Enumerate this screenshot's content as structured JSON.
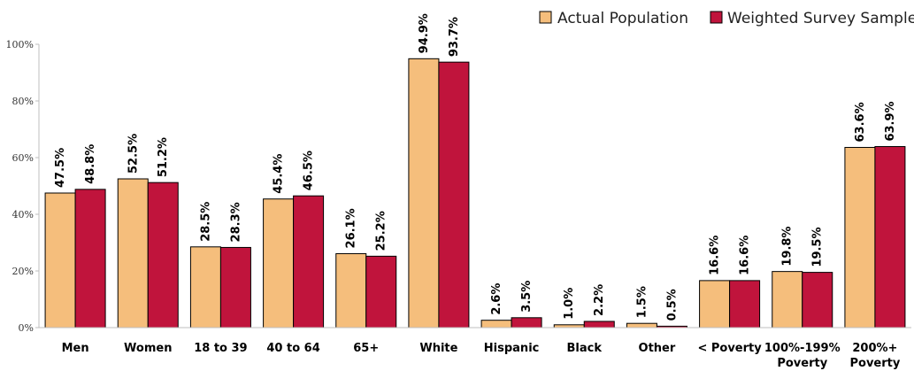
{
  "chart_data": {
    "type": "bar",
    "categories": [
      "Men",
      "Women",
      "18 to 39",
      "40 to 64",
      "65+",
      "White",
      "Hispanic",
      "Black",
      "Other",
      "< Poverty",
      [
        "100%-199%",
        "Poverty"
      ],
      [
        "200%+",
        "Poverty"
      ]
    ],
    "series": [
      {
        "name": "Actual Population",
        "color": "#F5BE7C",
        "values": [
          47.5,
          52.5,
          28.5,
          45.4,
          26.1,
          94.9,
          2.6,
          1.0,
          1.5,
          16.6,
          19.8,
          63.6
        ],
        "labels": [
          "47.5%",
          "52.5%",
          "28.5%",
          "45.4%",
          "26.1%",
          "94.9%",
          "2.6%",
          "1.0%",
          "1.5%",
          "16.6%",
          "19.8%",
          "63.6%"
        ]
      },
      {
        "name": "Weighted Survey Sample",
        "color": "#C0143C",
        "values": [
          48.8,
          51.2,
          28.3,
          46.5,
          25.2,
          93.7,
          3.5,
          2.2,
          0.5,
          16.6,
          19.5,
          63.9
        ],
        "labels": [
          "48.8%",
          "51.2%",
          "28.3%",
          "46.5%",
          "25.2%",
          "93.7%",
          "3.5%",
          "2.2%",
          "0.5%",
          "16.6%",
          "19.5%",
          "63.9%"
        ]
      }
    ],
    "yticks": [
      "0%",
      "20%",
      "40%",
      "60%",
      "80%",
      "100%"
    ],
    "ylim": [
      0,
      100
    ],
    "grid": false,
    "legend_position": "top-right"
  }
}
